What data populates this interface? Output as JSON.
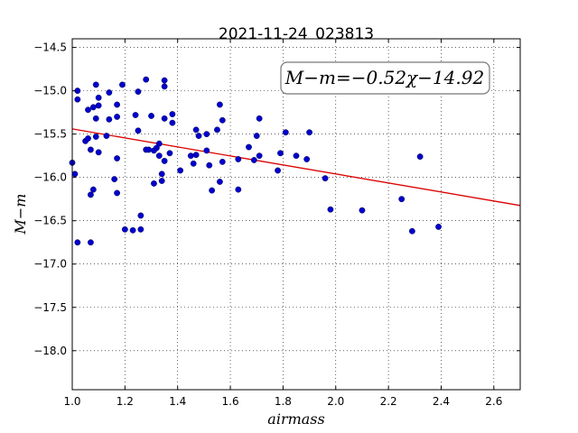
{
  "chart_data": {
    "type": "scatter",
    "title": "2021-11-24_023813",
    "xlabel": "airmass",
    "ylabel": "M−m",
    "xlim": [
      1.0,
      2.7
    ],
    "ylim": [
      -18.45,
      -14.4
    ],
    "y_inverted": true,
    "xticks": [
      1.0,
      1.2,
      1.4,
      1.6,
      1.8,
      2.0,
      2.2,
      2.4,
      2.6
    ],
    "xtick_labels": [
      "1.0",
      "1.2",
      "1.4",
      "1.6",
      "1.8",
      "2.0",
      "2.2",
      "2.4",
      "2.6"
    ],
    "yticks": [
      -14.5,
      -15.0,
      -15.5,
      -16.0,
      -16.5,
      -17.0,
      -17.5,
      -18.0
    ],
    "ytick_labels": [
      "−14.5",
      "−15.0",
      "−15.5",
      "−16.0",
      "−16.5",
      "−17.0",
      "−17.5",
      "−18.0"
    ],
    "grid": true,
    "annotation": "M−m=−0.52χ−14.92",
    "colors": {
      "points": "#0000cc",
      "fit": "#dd0000"
    },
    "fit": {
      "slope": -0.52,
      "intercept": -14.92
    },
    "points": [
      [
        1.0,
        -15.83
      ],
      [
        1.01,
        -15.96
      ],
      [
        1.02,
        -15.0
      ],
      [
        1.02,
        -15.1
      ],
      [
        1.02,
        -16.75
      ],
      [
        1.05,
        -15.58
      ],
      [
        1.06,
        -15.55
      ],
      [
        1.06,
        -15.22
      ],
      [
        1.07,
        -15.68
      ],
      [
        1.07,
        -16.2
      ],
      [
        1.07,
        -16.75
      ],
      [
        1.08,
        -15.19
      ],
      [
        1.08,
        -16.14
      ],
      [
        1.09,
        -15.53
      ],
      [
        1.09,
        -15.32
      ],
      [
        1.09,
        -14.93
      ],
      [
        1.1,
        -15.08
      ],
      [
        1.1,
        -15.17
      ],
      [
        1.1,
        -15.71
      ],
      [
        1.13,
        -15.52
      ],
      [
        1.14,
        -15.33
      ],
      [
        1.14,
        -15.02
      ],
      [
        1.16,
        -16.02
      ],
      [
        1.17,
        -16.18
      ],
      [
        1.17,
        -15.78
      ],
      [
        1.17,
        -15.3
      ],
      [
        1.17,
        -15.16
      ],
      [
        1.19,
        -14.93
      ],
      [
        1.2,
        -16.6
      ],
      [
        1.23,
        -16.61
      ],
      [
        1.24,
        -15.28
      ],
      [
        1.25,
        -15.46
      ],
      [
        1.25,
        -15.01
      ],
      [
        1.26,
        -16.6
      ],
      [
        1.26,
        -16.44
      ],
      [
        1.28,
        -15.68
      ],
      [
        1.28,
        -14.87
      ],
      [
        1.29,
        -15.68
      ],
      [
        1.3,
        -15.29
      ],
      [
        1.31,
        -15.69
      ],
      [
        1.31,
        -16.07
      ],
      [
        1.32,
        -15.66
      ],
      [
        1.33,
        -15.61
      ],
      [
        1.33,
        -15.75
      ],
      [
        1.34,
        -16.04
      ],
      [
        1.34,
        -15.96
      ],
      [
        1.35,
        -15.81
      ],
      [
        1.35,
        -15.32
      ],
      [
        1.35,
        -14.88
      ],
      [
        1.35,
        -14.95
      ],
      [
        1.37,
        -15.72
      ],
      [
        1.38,
        -15.27
      ],
      [
        1.38,
        -15.37
      ],
      [
        1.41,
        -15.92
      ],
      [
        1.45,
        -15.75
      ],
      [
        1.46,
        -15.84
      ],
      [
        1.47,
        -15.45
      ],
      [
        1.47,
        -15.74
      ],
      [
        1.48,
        -15.52
      ],
      [
        1.51,
        -15.69
      ],
      [
        1.51,
        -15.5
      ],
      [
        1.52,
        -15.86
      ],
      [
        1.53,
        -16.15
      ],
      [
        1.55,
        -15.45
      ],
      [
        1.56,
        -15.16
      ],
      [
        1.56,
        -16.05
      ],
      [
        1.57,
        -15.34
      ],
      [
        1.57,
        -15.82
      ],
      [
        1.63,
        -15.79
      ],
      [
        1.63,
        -16.14
      ],
      [
        1.67,
        -15.65
      ],
      [
        1.69,
        -15.8
      ],
      [
        1.7,
        -15.52
      ],
      [
        1.71,
        -15.75
      ],
      [
        1.71,
        -15.32
      ],
      [
        1.78,
        -15.92
      ],
      [
        1.79,
        -15.72
      ],
      [
        1.81,
        -15.48
      ],
      [
        1.85,
        -15.75
      ],
      [
        1.89,
        -15.79
      ],
      [
        1.9,
        -15.48
      ],
      [
        1.96,
        -16.01
      ],
      [
        1.98,
        -16.37
      ],
      [
        2.1,
        -16.38
      ],
      [
        2.25,
        -16.25
      ],
      [
        2.29,
        -16.62
      ],
      [
        2.32,
        -15.76
      ],
      [
        2.39,
        -16.57
      ]
    ]
  }
}
